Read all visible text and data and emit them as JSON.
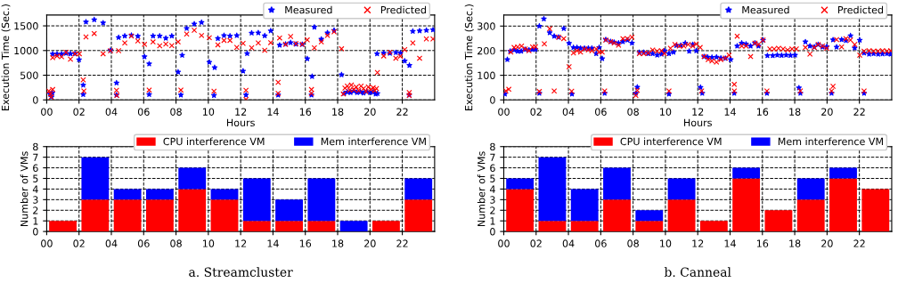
{
  "chart_data": [
    {
      "type": "scatter",
      "ylabel": "Execution Time (Sec.)",
      "xlabel": "Hours",
      "xlim": [
        0,
        24
      ],
      "ylim": [
        0,
        1720
      ],
      "xticks": [
        {
          "value": 0,
          "label": "00"
        },
        {
          "value": 2,
          "label": "02"
        },
        {
          "value": 4,
          "label": "04"
        },
        {
          "value": 6,
          "label": "06"
        },
        {
          "value": 8,
          "label": "08"
        },
        {
          "value": 10,
          "label": "10"
        },
        {
          "value": 12,
          "label": "12"
        },
        {
          "value": 14,
          "label": "14"
        },
        {
          "value": 16,
          "label": "16"
        },
        {
          "value": 18,
          "label": "18"
        },
        {
          "value": 20,
          "label": "20"
        },
        {
          "value": 22,
          "label": "22"
        }
      ],
      "yticks": [
        0,
        500,
        1000,
        1500
      ],
      "grid": true,
      "legend": "top right",
      "series": [
        {
          "name": "Measured",
          "color": "#0000ff",
          "marker": "star",
          "x": [
            0.2,
            0.3,
            0.35,
            0.37,
            0.64,
            0.92,
            1.2,
            1.47,
            1.75,
            2.0,
            2.26,
            2.26,
            2.43,
            2.94,
            3.49,
            3.95,
            4.32,
            4.32,
            4.45,
            4.83,
            5.24,
            5.64,
            6.05,
            6.34,
            6.34,
            6.58,
            6.99,
            7.37,
            7.74,
            8.13,
            8.38,
            8.3,
            8.66,
            9.13,
            9.58,
            10.06,
            10.39,
            10.35,
            10.59,
            10.97,
            11.34,
            11.76,
            12.15,
            12.33,
            12.4,
            12.68,
            13.09,
            13.49,
            13.86,
            14.32,
            14.41,
            14.78,
            15.09,
            15.42,
            15.81,
            16.12,
            16.38,
            16.42,
            16.56,
            16.99,
            17.37,
            17.78,
            18.24,
            18.4,
            18.6,
            18.8,
            19.0,
            19.2,
            19.4,
            19.6,
            19.8,
            20.0,
            20.2,
            20.35,
            20.46,
            20.44,
            20.85,
            21.23,
            21.6,
            21.88,
            22.15,
            22.43,
            22.44,
            22.65,
            23.07,
            23.49,
            23.9
          ],
          "values": [
            120,
            60,
            140,
            930,
            930,
            930,
            945,
            935,
            935,
            815,
            300,
            110,
            1580,
            1625,
            1560,
            1005,
            345,
            100,
            1265,
            1295,
            1310,
            1290,
            875,
            730,
            110,
            1295,
            1295,
            1250,
            1295,
            565,
            905,
            100,
            1450,
            1540,
            1570,
            765,
            655,
            90,
            1245,
            1305,
            1295,
            1305,
            585,
            100,
            940,
            1355,
            1360,
            1300,
            1400,
            100,
            1110,
            1130,
            1160,
            1130,
            1125,
            835,
            100,
            475,
            1475,
            1230,
            1360,
            1410,
            510,
            130,
            160,
            150,
            180,
            150,
            160,
            140,
            170,
            150,
            160,
            120,
            130,
            935,
            950,
            945,
            960,
            950,
            790,
            100,
            700,
            1390,
            1400,
            1410,
            1420
          ]
        },
        {
          "name": "Predicted",
          "color": "#ff0000",
          "marker": "cross",
          "x": [
            0.13,
            0.24,
            0.28,
            0.37,
            0.37,
            0.64,
            0.92,
            1.2,
            1.47,
            1.75,
            2.02,
            2.26,
            2.3,
            2.43,
            2.94,
            3.49,
            3.95,
            4.32,
            4.34,
            4.45,
            4.83,
            5.24,
            5.64,
            6.05,
            6.34,
            6.58,
            6.99,
            7.37,
            7.74,
            8.13,
            8.3,
            8.66,
            9.13,
            9.58,
            10.06,
            10.35,
            10.59,
            10.97,
            11.34,
            11.76,
            12.15,
            12.33,
            12.33,
            12.68,
            13.09,
            13.49,
            13.86,
            14.32,
            14.32,
            14.41,
            14.78,
            15.09,
            15.42,
            15.81,
            16.12,
            16.38,
            16.38,
            16.56,
            16.99,
            17.37,
            17.78,
            18.24,
            18.35,
            18.45,
            18.6,
            18.75,
            18.85,
            19.0,
            19.15,
            19.3,
            19.45,
            19.6,
            19.75,
            19.9,
            20.05,
            20.2,
            20.3,
            20.4,
            20.46,
            20.85,
            21.23,
            21.6,
            21.88,
            22.15,
            22.43,
            22.43,
            22.65,
            23.07,
            23.49,
            23.9
          ],
          "values": [
            180,
            120,
            60,
            210,
            855,
            890,
            875,
            965,
            825,
            935,
            935,
            405,
            180,
            1275,
            1345,
            935,
            995,
            195,
            90,
            995,
            1155,
            1295,
            1195,
            1125,
            200,
            1175,
            1095,
            1130,
            1100,
            1175,
            200,
            1335,
            1410,
            1305,
            1260,
            175,
            1115,
            1205,
            1205,
            1065,
            1145,
            195,
            10,
            1055,
            1155,
            1005,
            1160,
            355,
            130,
            1255,
            1125,
            1285,
            1140,
            1125,
            1215,
            210,
            130,
            1055,
            1175,
            1305,
            1380,
            1035,
            120,
            240,
            280,
            200,
            300,
            210,
            260,
            190,
            280,
            230,
            170,
            260,
            210,
            250,
            190,
            230,
            555,
            890,
            965,
            845,
            885,
            1020,
            150,
            90,
            1155,
            845,
            1235,
            1235
          ]
        }
      ]
    },
    {
      "type": "scatter",
      "ylabel": "Execution Time (Sec.)",
      "xlabel": "Hours",
      "xlim": [
        0,
        24
      ],
      "ylim": [
        0,
        345
      ],
      "xticks": [
        {
          "value": 0,
          "label": "00"
        },
        {
          "value": 2,
          "label": "02"
        },
        {
          "value": 4,
          "label": "04"
        },
        {
          "value": 6,
          "label": "06"
        },
        {
          "value": 8,
          "label": "08"
        },
        {
          "value": 10,
          "label": "10"
        },
        {
          "value": 12,
          "label": "12"
        },
        {
          "value": 14,
          "label": "14"
        },
        {
          "value": 16,
          "label": "16"
        },
        {
          "value": 18,
          "label": "18"
        },
        {
          "value": 20,
          "label": "20"
        },
        {
          "value": 22,
          "label": "22"
        }
      ],
      "yticks": [
        0,
        100,
        200,
        300
      ],
      "grid": true,
      "legend": "top right",
      "series": [
        {
          "name": "Measured",
          "color": "#0000ff",
          "marker": "star",
          "x": [
            0.07,
            0.22,
            0.4,
            0.64,
            0.86,
            1.08,
            1.32,
            1.56,
            1.78,
            1.96,
            2.2,
            2.2,
            2.48,
            2.84,
            3.12,
            3.39,
            3.71,
            4.04,
            4.22,
            4.31,
            4.53,
            4.75,
            4.99,
            5.23,
            5.45,
            5.72,
            5.9,
            6.09,
            6.24,
            6.31,
            6.61,
            6.83,
            7.1,
            7.37,
            7.65,
            7.93,
            8.17,
            8.26,
            8.39,
            8.66,
            8.94,
            9.21,
            9.49,
            9.76,
            9.94,
            10.22,
            10.22,
            10.5,
            10.68,
            10.95,
            11.23,
            11.47,
            11.69,
            11.91,
            12.17,
            12.28,
            12.39,
            12.61,
            12.88,
            13.16,
            13.43,
            13.71,
            14.04,
            14.26,
            14.44,
            14.72,
            14.99,
            15.27,
            15.54,
            15.76,
            16.04,
            16.28,
            16.31,
            16.64,
            16.92,
            17.19,
            17.47,
            17.74,
            18.02,
            18.26,
            18.35,
            18.66,
            18.94,
            19.21,
            19.45,
            19.72,
            19.98,
            20.28,
            20.37,
            20.59,
            20.9,
            21.17,
            21.45,
            21.71,
            22.02,
            22.29,
            22.29,
            22.6,
            22.88,
            23.16,
            23.43,
            23.71,
            23.94
          ],
          "values": [
            24,
            164,
            198,
            203,
            198,
            198,
            205,
            203,
            205,
            205,
            27,
            300,
            329,
            273,
            259,
            255,
            290,
            230,
            24,
            213,
            213,
            210,
            210,
            210,
            210,
            188,
            213,
            168,
            27,
            245,
            237,
            234,
            231,
            237,
            243,
            231,
            27,
            52,
            193,
            193,
            188,
            188,
            182,
            186,
            200,
            24,
            188,
            194,
            221,
            222,
            231,
            198,
            225,
            200,
            51,
            27,
            176,
            174,
            173,
            174,
            170,
            169,
            164,
            27,
            219,
            231,
            227,
            219,
            231,
            219,
            243,
            27,
            180,
            180,
            182,
            181,
            182,
            181,
            182,
            49,
            27,
            236,
            219,
            215,
            225,
            215,
            216,
            27,
            244,
            215,
            245,
            241,
            261,
            211,
            243,
            27,
            191,
            186,
            188,
            186,
            187,
            188,
            186
          ]
        },
        {
          "name": "Predicted",
          "color": "#ff0000",
          "marker": "cross",
          "x": [
            0.13,
            0.31,
            0.44,
            0.64,
            0.86,
            1.1,
            1.32,
            1.56,
            1.78,
            1.96,
            2.2,
            2.51,
            2.84,
            3.12,
            3.39,
            3.71,
            4.04,
            4.2,
            4.31,
            4.53,
            4.75,
            4.99,
            5.23,
            5.45,
            5.72,
            5.9,
            6.09,
            6.24,
            6.31,
            6.61,
            6.83,
            7.1,
            7.37,
            7.65,
            7.93,
            8.17,
            8.26,
            8.39,
            8.66,
            8.94,
            9.21,
            9.49,
            9.76,
            9.94,
            10.22,
            10.31,
            10.59,
            10.86,
            11.14,
            11.41,
            11.69,
            11.91,
            12.24,
            12.15,
            12.39,
            12.65,
            12.88,
            13.16,
            13.43,
            13.71,
            13.94,
            14.26,
            14.26,
            14.44,
            14.72,
            14.99,
            15.27,
            15.54,
            15.76,
            16.04,
            16.28,
            16.46,
            16.73,
            17.0,
            17.28,
            17.56,
            17.83,
            18.1,
            18.35,
            18.66,
            18.94,
            19.21,
            19.45,
            19.72,
            19.98,
            20.28,
            20.37,
            20.59,
            20.9,
            21.17,
            21.45,
            21.71,
            22.02,
            22.29,
            22.29,
            22.6,
            22.88,
            23.16,
            23.43,
            23.71,
            23.94
          ],
          "values": [
            36,
            43,
            194,
            213,
            215,
            219,
            207,
            200,
            215,
            216,
            34,
            228,
            289,
            36,
            255,
            249,
            135,
            35,
            191,
            200,
            194,
            207,
            203,
            200,
            207,
            194,
            194,
            36,
            243,
            237,
            231,
            222,
            249,
            249,
            255,
            18,
            39,
            188,
            188,
            191,
            203,
            198,
            200,
            188,
            36,
            210,
            225,
            219,
            219,
            225,
            219,
            227,
            36,
            213,
            176,
            164,
            158,
            154,
            164,
            170,
            182,
            63,
            36,
            259,
            219,
            219,
            176,
            231,
            225,
            243,
            36,
            207,
            207,
            210,
            207,
            203,
            207,
            207,
            36,
            213,
            186,
            213,
            225,
            219,
            210,
            36,
            55,
            245,
            215,
            249,
            243,
            225,
            182,
            36,
            198,
            200,
            198,
            198,
            200,
            198,
            200
          ]
        }
      ]
    },
    {
      "type": "bar",
      "stacked": true,
      "ylabel": "Number of VMs",
      "x": [
        1,
        3,
        5,
        7,
        9,
        11,
        13,
        15,
        17,
        19,
        21,
        23
      ],
      "xlim": [
        0,
        24
      ],
      "ylim": [
        0,
        8
      ],
      "xticks": [
        {
          "value": 0,
          "label": "00"
        },
        {
          "value": 2,
          "label": "02"
        },
        {
          "value": 4,
          "label": "04"
        },
        {
          "value": 6,
          "label": "06"
        },
        {
          "value": 8,
          "label": "08"
        },
        {
          "value": 10,
          "label": "10"
        },
        {
          "value": 12,
          "label": "12"
        },
        {
          "value": 14,
          "label": "14"
        },
        {
          "value": 16,
          "label": "16"
        },
        {
          "value": 18,
          "label": "18"
        },
        {
          "value": 20,
          "label": "20"
        },
        {
          "value": 22,
          "label": "22"
        }
      ],
      "yticks": [
        0,
        1,
        2,
        3,
        4,
        5,
        6,
        7,
        8
      ],
      "grid": true,
      "legend": "top right",
      "series": [
        {
          "name": "CPU interference VM",
          "color": "#ff0000",
          "values": [
            1,
            3,
            3,
            3,
            4,
            3,
            1,
            1,
            1,
            0,
            1,
            3
          ]
        },
        {
          "name": "Mem interference VM",
          "color": "#0000ff",
          "values": [
            0,
            4,
            1,
            1,
            2,
            1,
            4,
            2,
            4,
            1,
            0,
            2
          ]
        }
      ],
      "annotations": [
        "a. Streamcluster"
      ]
    },
    {
      "type": "bar",
      "stacked": true,
      "ylabel": "Number of VMs",
      "x": [
        1,
        3,
        5,
        7,
        9,
        11,
        13,
        15,
        17,
        19,
        21,
        23
      ],
      "xlim": [
        0,
        24
      ],
      "ylim": [
        0,
        8
      ],
      "xticks": [
        {
          "value": 0,
          "label": "00"
        },
        {
          "value": 2,
          "label": "02"
        },
        {
          "value": 4,
          "label": "04"
        },
        {
          "value": 6,
          "label": "06"
        },
        {
          "value": 8,
          "label": "08"
        },
        {
          "value": 10,
          "label": "10"
        },
        {
          "value": 12,
          "label": "12"
        },
        {
          "value": 14,
          "label": "14"
        },
        {
          "value": 16,
          "label": "16"
        },
        {
          "value": 18,
          "label": "18"
        },
        {
          "value": 20,
          "label": "20"
        },
        {
          "value": 22,
          "label": "22"
        }
      ],
      "yticks": [
        0,
        1,
        2,
        3,
        4,
        5,
        6,
        7,
        8
      ],
      "grid": true,
      "legend": "top right",
      "series": [
        {
          "name": "CPU interference VM",
          "color": "#ff0000",
          "values": [
            4,
            1,
            1,
            3,
            1,
            3,
            1,
            5,
            2,
            3,
            5,
            4
          ]
        },
        {
          "name": "Mem interference VM",
          "color": "#0000ff",
          "values": [
            1,
            6,
            3,
            3,
            1,
            2,
            0,
            1,
            0,
            2,
            1,
            0
          ]
        }
      ],
      "annotations": [
        "b. Canneal"
      ]
    }
  ]
}
